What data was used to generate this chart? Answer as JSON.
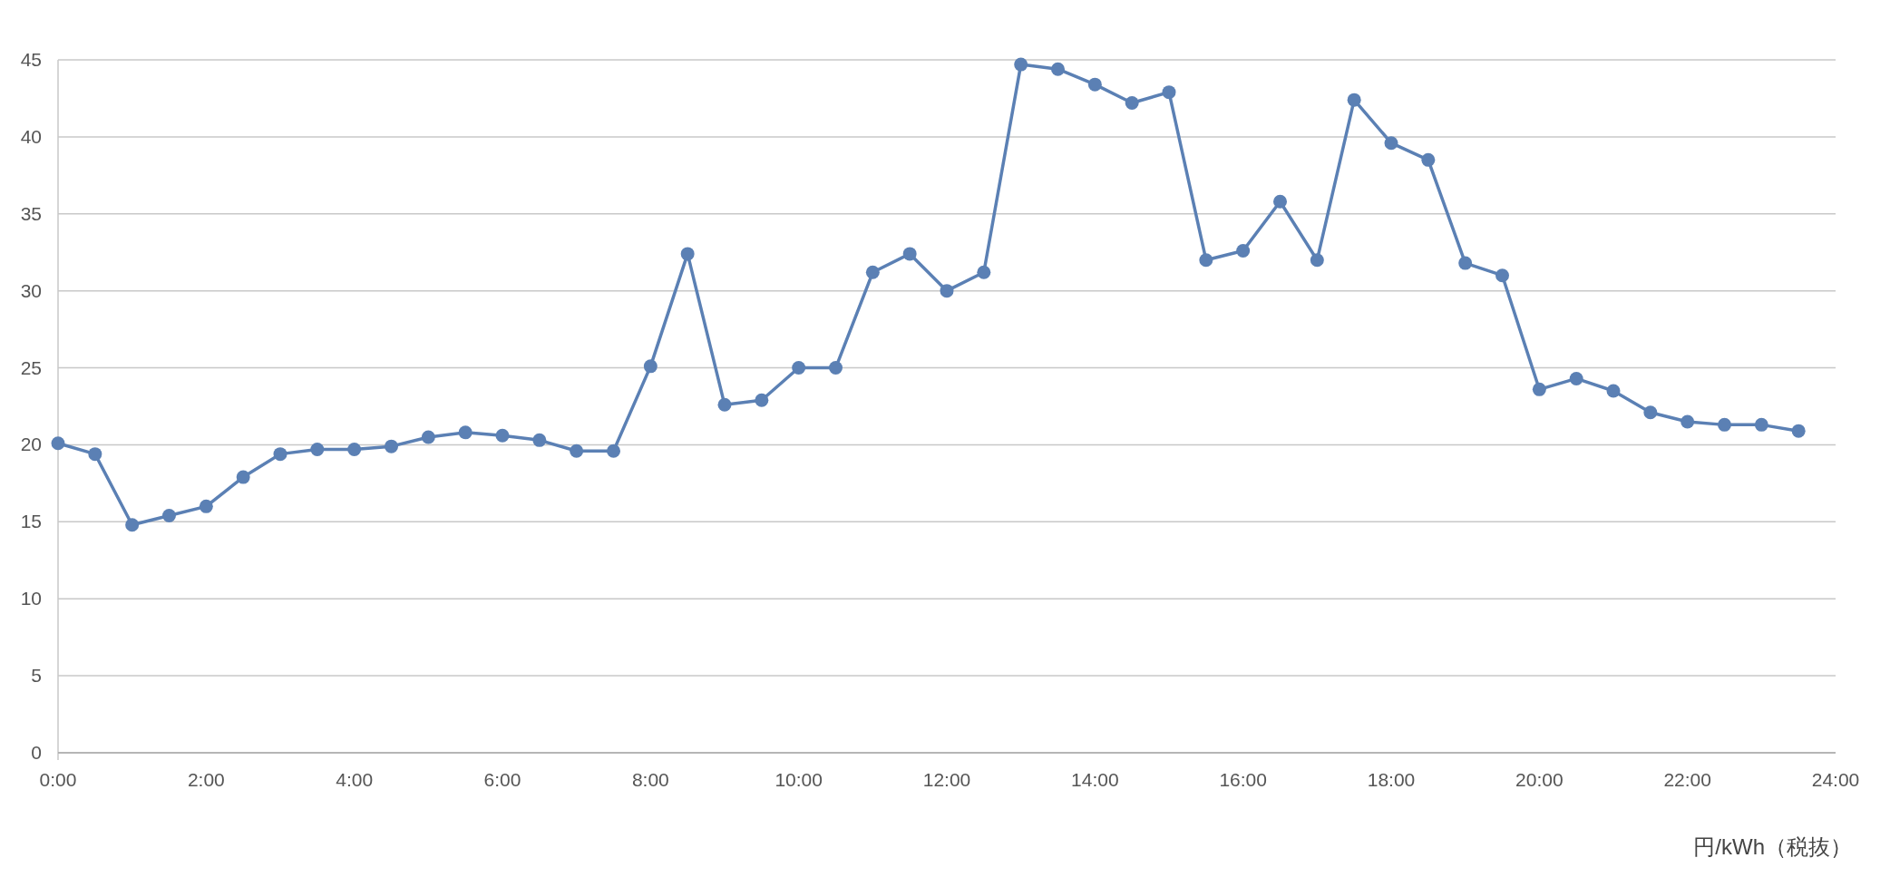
{
  "chart_data": {
    "type": "line",
    "annotations": [
      "円/kWh（税抜）"
    ],
    "x": [
      0,
      0.5,
      1,
      1.5,
      2,
      2.5,
      3,
      3.5,
      4,
      4.5,
      5,
      5.5,
      6,
      6.5,
      7,
      7.5,
      8,
      8.5,
      9,
      9.5,
      10,
      10.5,
      11,
      11.5,
      12,
      12.5,
      13,
      13.5,
      14,
      14.5,
      15,
      15.5,
      16,
      16.5,
      17,
      17.5,
      18,
      18.5,
      19,
      19.5,
      20,
      20.5,
      21,
      21.5,
      22,
      22.5,
      23,
      23.5
    ],
    "series": [
      {
        "color": "#5b80b4",
        "values": [
          20.1,
          19.4,
          14.8,
          15.4,
          16.0,
          17.9,
          19.4,
          19.7,
          19.7,
          19.9,
          20.5,
          20.8,
          20.6,
          20.3,
          19.6,
          19.6,
          25.1,
          32.4,
          22.6,
          22.9,
          25.0,
          25.0,
          31.2,
          32.4,
          30.0,
          31.2,
          44.7,
          44.4,
          43.4,
          42.2,
          42.9,
          32.0,
          32.6,
          35.8,
          32.0,
          42.4,
          39.6,
          38.5,
          31.8,
          31.0,
          23.6,
          24.3,
          23.5,
          22.1,
          21.5,
          21.3,
          21.3,
          20.9
        ]
      }
    ],
    "xlim": [
      0,
      24
    ],
    "xticks": [
      {
        "value": 0,
        "label": "0:00"
      },
      {
        "value": 2,
        "label": "2:00"
      },
      {
        "value": 4,
        "label": "4:00"
      },
      {
        "value": 6,
        "label": "6:00"
      },
      {
        "value": 8,
        "label": "8:00"
      },
      {
        "value": 10,
        "label": "10:00"
      },
      {
        "value": 12,
        "label": "12:00"
      },
      {
        "value": 14,
        "label": "14:00"
      },
      {
        "value": 16,
        "label": "16:00"
      },
      {
        "value": 18,
        "label": "18:00"
      },
      {
        "value": 20,
        "label": "20:00"
      },
      {
        "value": 22,
        "label": "22:00"
      },
      {
        "value": 24,
        "label": "24:00"
      }
    ],
    "ylim": [
      0,
      45
    ],
    "yticks": [
      0,
      5,
      10,
      15,
      20,
      25,
      30,
      35,
      40,
      45
    ],
    "grid": "y",
    "marker": "circle",
    "line_style": "solid"
  }
}
